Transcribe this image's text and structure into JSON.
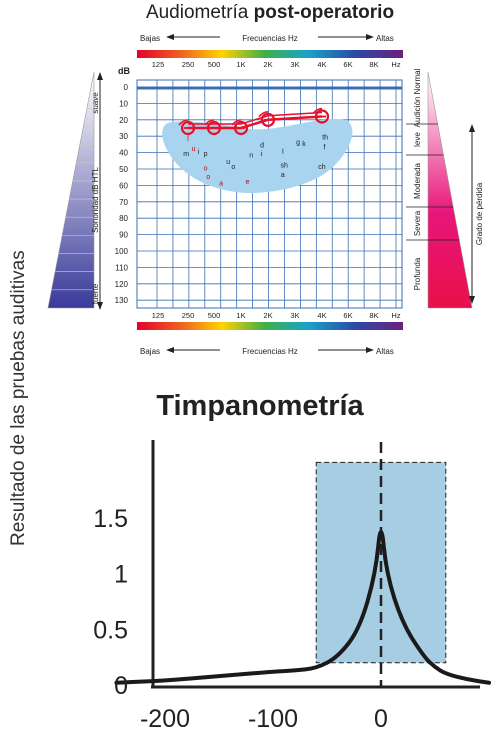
{
  "side_label": "Resultado de las  pruebas auditivas",
  "audiogram": {
    "title_prefix": "Audiometría ",
    "title_bold": "post-operatorio",
    "top_bar": {
      "left": "Bajas",
      "center": "Frecuencias Hz",
      "right": "Altas"
    },
    "bottom_bar": {
      "left": "Bajas",
      "center": "Frecuencias Hz",
      "right": "Altas"
    },
    "freq_labels": [
      "125",
      "250",
      "500",
      "1K",
      "2K",
      "3K",
      "4K",
      "6K",
      "8K",
      "Hz"
    ],
    "unit_label": "dB",
    "db_labels": [
      "0",
      "10",
      "20",
      "30",
      "40",
      "50",
      "60",
      "70",
      "80",
      "90",
      "100",
      "110",
      "120",
      "130"
    ],
    "left_scale": {
      "top": "suave",
      "middle": "Sonoridad dB HTL",
      "bottom": "fuerte"
    },
    "right_scale": {
      "categories": [
        "Audición Normal",
        "leve",
        "Moderada",
        "Severa",
        "Profunda"
      ],
      "title": "Grado de pérdida"
    },
    "speech_letters": [
      {
        "t": "l",
        "f": 250,
        "db": 33,
        "color": "#cc0000"
      },
      {
        "t": "u",
        "f": 290,
        "db": 39,
        "color": "#cc0000"
      },
      {
        "t": "m",
        "f": 240,
        "db": 42,
        "color": "#222222"
      },
      {
        "t": "i",
        "f": 330,
        "db": 41,
        "color": "#222222"
      },
      {
        "t": "p",
        "f": 400,
        "db": 42,
        "color": "#222222"
      },
      {
        "t": "u",
        "f": 720,
        "db": 47,
        "color": "#222222"
      },
      {
        "t": "o",
        "f": 400,
        "db": 51,
        "color": "#cc0000"
      },
      {
        "t": "o",
        "f": 820,
        "db": 50,
        "color": "#222222"
      },
      {
        "t": "n",
        "f": 1300,
        "db": 43,
        "color": "#222222"
      },
      {
        "t": "i",
        "f": 1700,
        "db": 42,
        "color": "#222222"
      },
      {
        "t": "d",
        "f": 1720,
        "db": 37,
        "color": "#222222"
      },
      {
        "t": "l",
        "f": 2500,
        "db": 41,
        "color": "#222222"
      },
      {
        "t": "sh",
        "f": 2550,
        "db": 49,
        "color": "#222222"
      },
      {
        "t": "k",
        "f": 3300,
        "db": 36,
        "color": "#222222"
      },
      {
        "t": "g",
        "f": 3100,
        "db": 35,
        "color": "#222222"
      },
      {
        "t": "f",
        "f": 4150,
        "db": 38,
        "color": "#222222"
      },
      {
        "t": "th",
        "f": 4200,
        "db": 32,
        "color": "#222222"
      },
      {
        "t": "ch",
        "f": 4000,
        "db": 50,
        "color": "#222222"
      },
      {
        "t": "o",
        "f": 430,
        "db": 56,
        "color": "#cc0000"
      },
      {
        "t": "e",
        "f": 1180,
        "db": 59,
        "color": "#cc0000"
      },
      {
        "t": "a",
        "f": 600,
        "db": 60,
        "color": "#cc0000"
      },
      {
        "t": "a",
        "f": 2500,
        "db": 55,
        "color": "#222222"
      }
    ]
  },
  "chart_data": [
    {
      "type": "line",
      "title": "Audiometría post-operatorio",
      "xlabel": "Frecuencias Hz",
      "ylabel": "dB",
      "x": [
        250,
        500,
        1000,
        2000,
        4000
      ],
      "series": [
        {
          "values": [
            25,
            25,
            25,
            20,
            18
          ],
          "color": "#e8102a"
        }
      ],
      "xlim": [
        125,
        8000
      ],
      "ylim": [
        0,
        130
      ],
      "y_inverted": true,
      "x_scale": "log2",
      "grid": true
    },
    {
      "type": "line",
      "title": "Timpanometría",
      "xlabel": "",
      "ylabel": "",
      "x": [
        -245,
        -200,
        -150,
        -100,
        -80,
        -60,
        -40,
        -20,
        -5,
        0,
        5,
        20,
        40,
        50,
        60,
        80,
        100
      ],
      "series": [
        {
          "values": [
            0.02,
            0.04,
            0.08,
            0.12,
            0.13,
            0.15,
            0.25,
            0.5,
            1.0,
            1.5,
            1.0,
            0.55,
            0.25,
            0.16,
            0.1,
            0.05,
            0.02
          ]
        }
      ],
      "xlim": [
        -260,
        100
      ],
      "ylim": [
        0,
        1.9
      ],
      "yticks": [
        0,
        0.5,
        1,
        1.5
      ],
      "xticks": [
        -200,
        -100,
        0
      ],
      "normal_range": {
        "x": [
          -60,
          60
        ],
        "y": [
          0.2,
          2.2
        ]
      },
      "peak_x": 0
    }
  ]
}
